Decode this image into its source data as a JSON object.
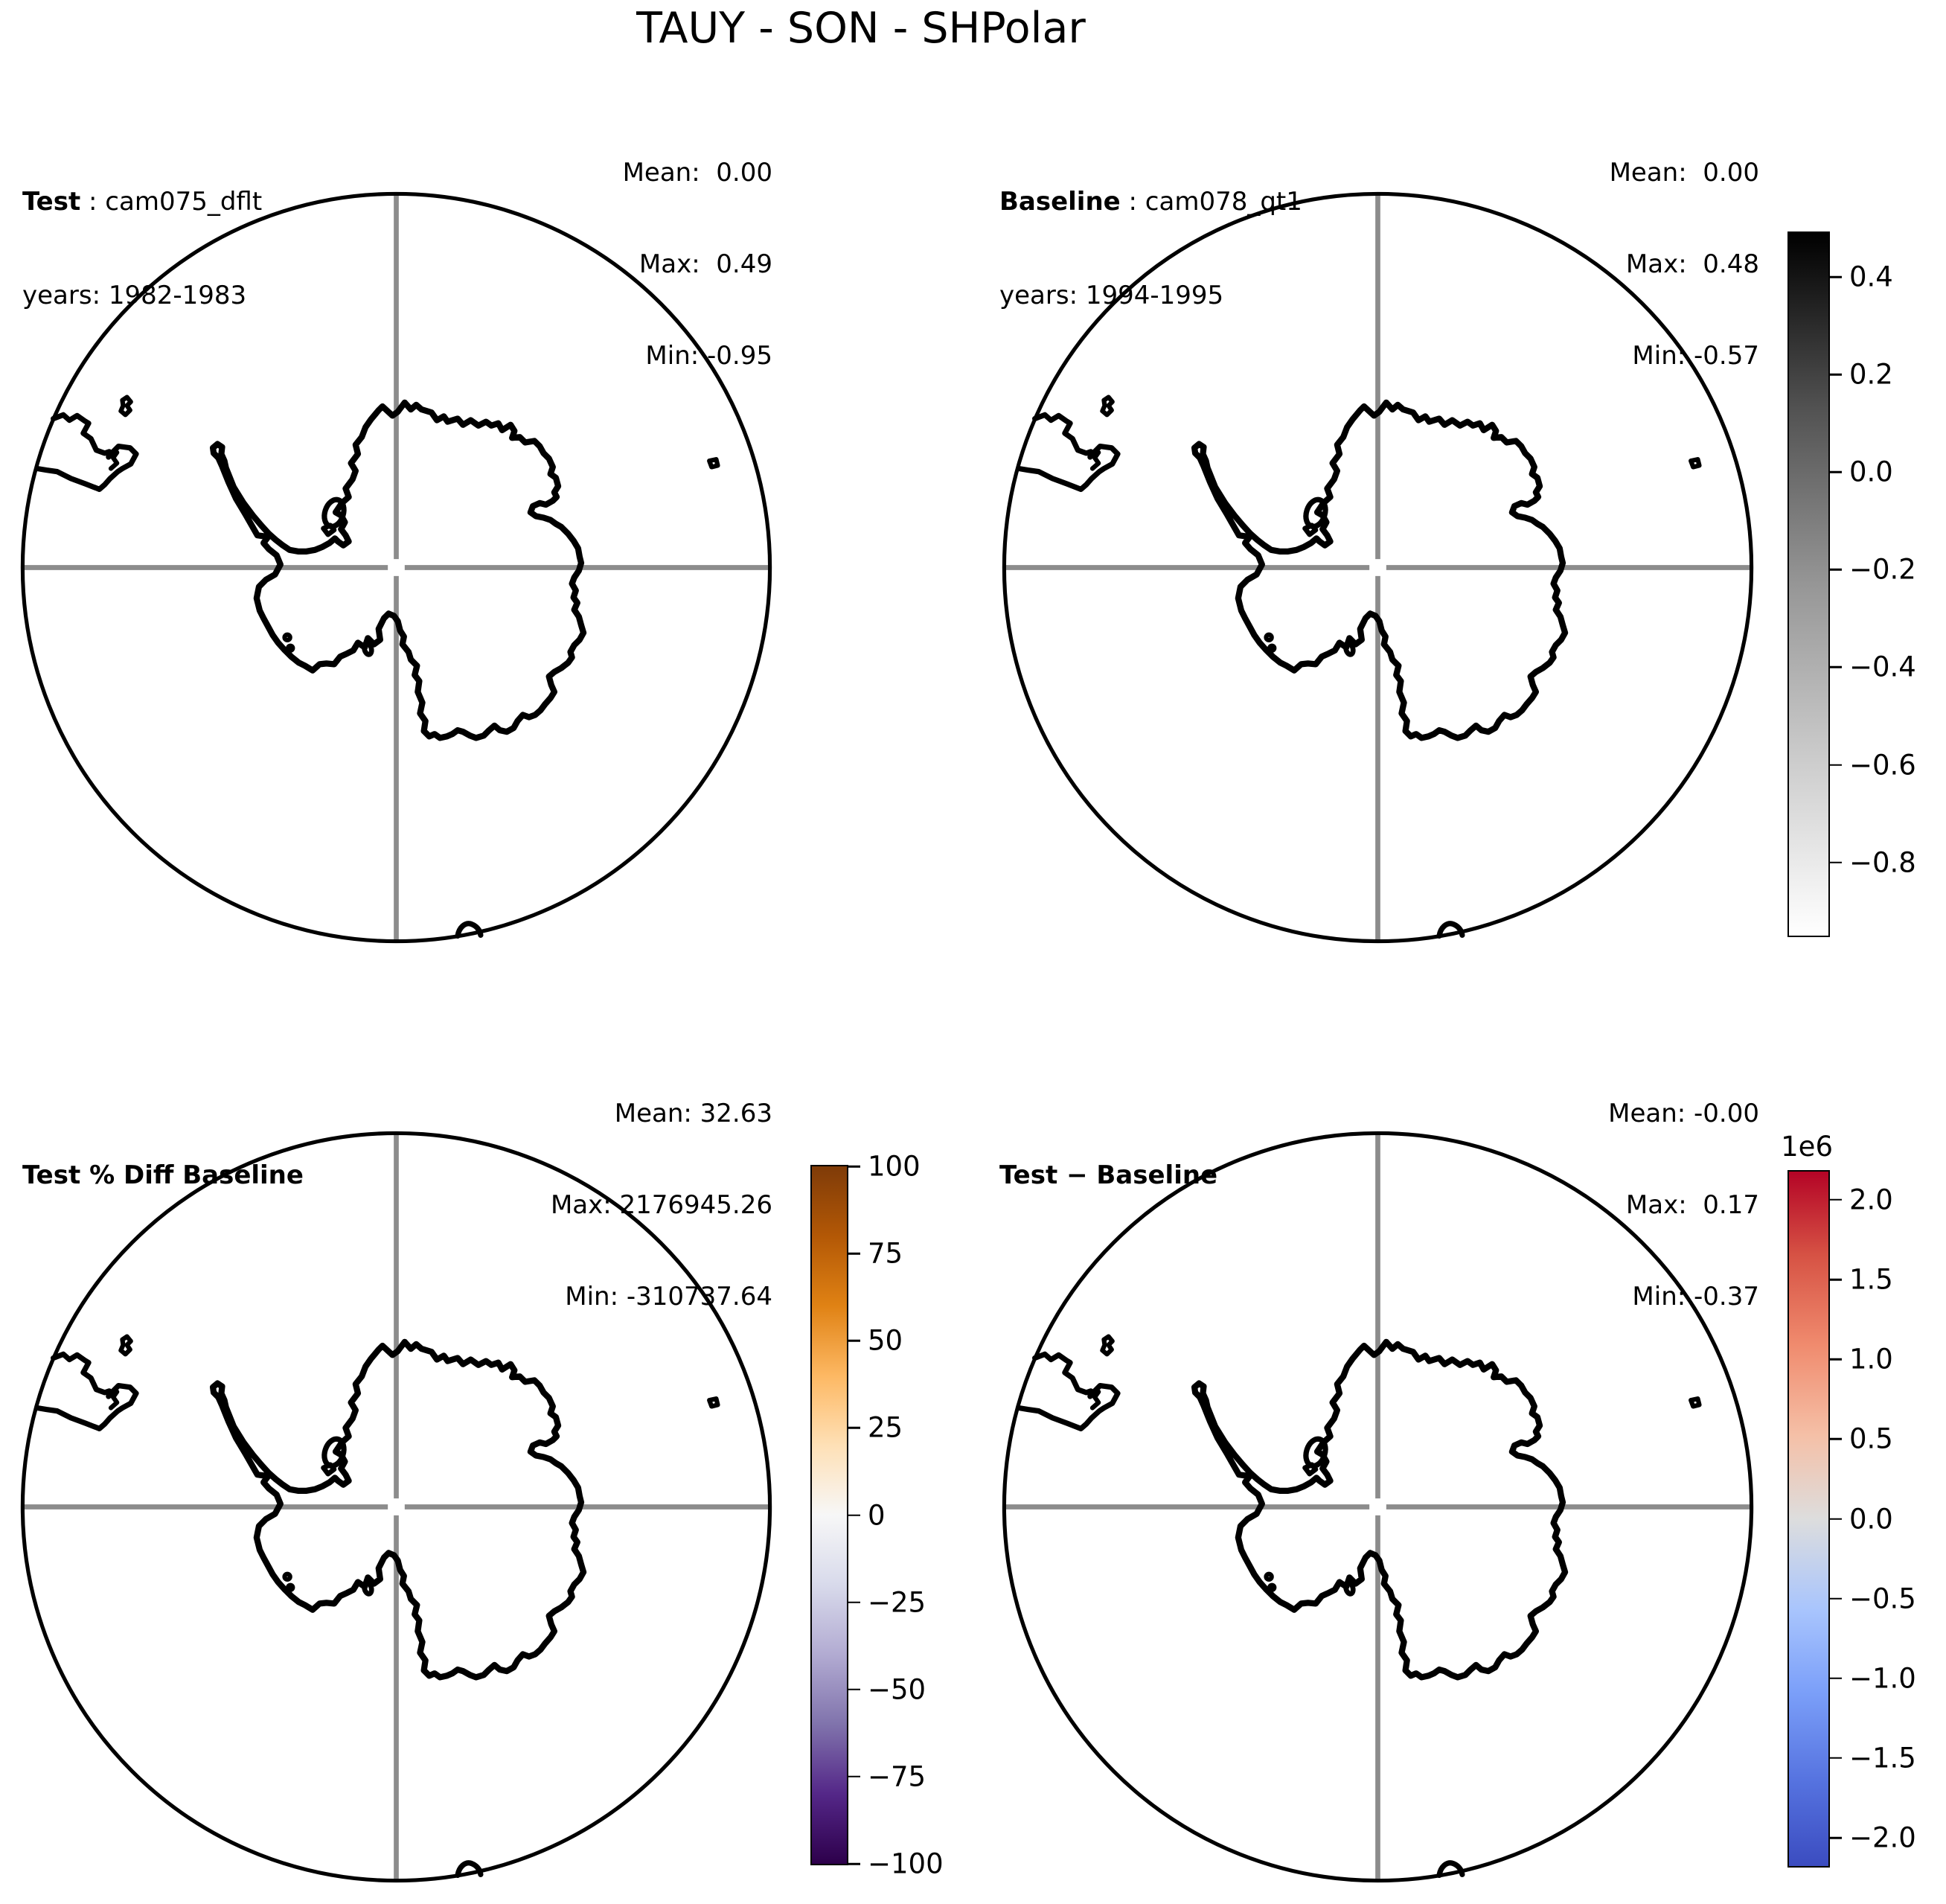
{
  "title": "TAUY - SON - SHPolar",
  "panels": [
    {
      "id": "test",
      "label_bold": "Test",
      "label_rest": " : cam075_dflt",
      "years": "years: 1982-1983",
      "stats": {
        "mean": "Mean:  0.00",
        "max": "Max:  0.49",
        "min": "Min: -0.95"
      }
    },
    {
      "id": "baseline",
      "label_bold": "Baseline",
      "label_rest": " : cam078_qt1",
      "years": "years: 1994-1995",
      "stats": {
        "mean": "Mean:  0.00",
        "max": "Max:  0.48",
        "min": "Min: -0.57"
      }
    },
    {
      "id": "pct_diff",
      "label_bold": "Test % Diff Baseline",
      "label_rest": "",
      "years": "",
      "stats": {
        "mean": "Mean: 32.63",
        "max": "Max: 2176945.26",
        "min": "Min: -310737.64"
      }
    },
    {
      "id": "diff",
      "label_bold": "Test − Baseline",
      "label_rest": "",
      "years": "",
      "stats": {
        "mean": "Mean: -0.00",
        "max": "Max:  0.17",
        "min": "Min: -0.37"
      }
    }
  ],
  "colorbars": [
    {
      "id": "grays",
      "name": "grayscale",
      "vmin": -0.95,
      "vmax": 0.49,
      "stops": [
        {
          "color": "#000000",
          "at": 0
        },
        {
          "color": "#525252",
          "at": 25
        },
        {
          "color": "#969696",
          "at": 50
        },
        {
          "color": "#cccccc",
          "at": 75
        },
        {
          "color": "#ffffff",
          "at": 100
        }
      ],
      "ticks": [
        {
          "value": 0.4,
          "label": "0.4"
        },
        {
          "value": 0.2,
          "label": "0.2"
        },
        {
          "value": 0.0,
          "label": "0.0"
        },
        {
          "value": -0.2,
          "label": "−0.2"
        },
        {
          "value": -0.4,
          "label": "−0.4"
        },
        {
          "value": -0.6,
          "label": "−0.6"
        },
        {
          "value": -0.8,
          "label": "−0.8"
        }
      ]
    },
    {
      "id": "puor",
      "name": "PuOr",
      "vmin": -100,
      "vmax": 100,
      "stops": [
        {
          "color": "#7f3b08",
          "at": 0
        },
        {
          "color": "#b35806",
          "at": 10
        },
        {
          "color": "#e08214",
          "at": 20
        },
        {
          "color": "#fdb863",
          "at": 30
        },
        {
          "color": "#fee0b6",
          "at": 40
        },
        {
          "color": "#f7f7f7",
          "at": 50
        },
        {
          "color": "#d8daeb",
          "at": 60
        },
        {
          "color": "#b2abd2",
          "at": 70
        },
        {
          "color": "#8073ac",
          "at": 80
        },
        {
          "color": "#542788",
          "at": 90
        },
        {
          "color": "#2d004b",
          "at": 100
        }
      ],
      "ticks": [
        {
          "value": 100,
          "label": "100"
        },
        {
          "value": 75,
          "label": "75"
        },
        {
          "value": 50,
          "label": "50"
        },
        {
          "value": 25,
          "label": "25"
        },
        {
          "value": 0,
          "label": "0"
        },
        {
          "value": -25,
          "label": "−25"
        },
        {
          "value": -50,
          "label": "−50"
        },
        {
          "value": -75,
          "label": "−75"
        },
        {
          "value": -100,
          "label": "−100"
        }
      ]
    },
    {
      "id": "coolwarm",
      "name": "coolwarm",
      "offset_label": "1e6",
      "vmin": -2.176945,
      "vmax": 2.176945,
      "stops": [
        {
          "color": "#b40426",
          "at": 0
        },
        {
          "color": "#d65244",
          "at": 12
        },
        {
          "color": "#f08b6e",
          "at": 25
        },
        {
          "color": "#f5c0a7",
          "at": 38
        },
        {
          "color": "#dddddd",
          "at": 50
        },
        {
          "color": "#a9c5fd",
          "at": 63
        },
        {
          "color": "#7b9ff9",
          "at": 75
        },
        {
          "color": "#5572df",
          "at": 88
        },
        {
          "color": "#3b4cc0",
          "at": 100
        }
      ],
      "ticks": [
        {
          "value": 2.0,
          "label": "2.0"
        },
        {
          "value": 1.5,
          "label": "1.5"
        },
        {
          "value": 1.0,
          "label": "1.0"
        },
        {
          "value": 0.5,
          "label": "0.5"
        },
        {
          "value": 0.0,
          "label": "0.0"
        },
        {
          "value": -0.5,
          "label": "−0.5"
        },
        {
          "value": -1.0,
          "label": "−1.0"
        },
        {
          "value": -1.5,
          "label": "−1.5"
        },
        {
          "value": -2.0,
          "label": "−2.0"
        }
      ]
    }
  ],
  "chart_data": {
    "type": "heatmap",
    "title": "TAUY - SON - SHPolar",
    "variable": "TAUY",
    "season": "SON",
    "region": "SHPolar",
    "projection": "south polar stereographic",
    "grid": "lat/lon crosshair through pole, circular boundary, Antarctica coastlines",
    "panels": [
      {
        "position": "top-left",
        "name": "Test",
        "case": "cam075_dflt",
        "years": "1982-1983",
        "mean": 0.0,
        "max": 0.49,
        "min": -0.95,
        "colormap": "grayscale",
        "colorbar_range": [
          -0.95,
          0.49
        ],
        "colorbar_ticks": [
          0.4,
          0.2,
          0.0,
          -0.2,
          -0.4,
          -0.6,
          -0.8
        ]
      },
      {
        "position": "top-right",
        "name": "Baseline",
        "case": "cam078_qt1",
        "years": "1994-1995",
        "mean": 0.0,
        "max": 0.48,
        "min": -0.57,
        "colormap": "grayscale",
        "colorbar_range": [
          -0.95,
          0.49
        ],
        "colorbar_ticks": [
          0.4,
          0.2,
          0.0,
          -0.2,
          -0.4,
          -0.6,
          -0.8
        ]
      },
      {
        "position": "bottom-left",
        "name": "Test % Diff Baseline",
        "mean": 32.63,
        "max": 2176945.26,
        "min": -310737.64,
        "colormap": "PuOr",
        "colorbar_range": [
          -100,
          100
        ],
        "colorbar_ticks": [
          100,
          75,
          50,
          25,
          0,
          -25,
          -50,
          -75,
          -100
        ]
      },
      {
        "position": "bottom-right",
        "name": "Test − Baseline",
        "mean": -0.0,
        "max": 0.17,
        "min": -0.37,
        "colormap": "coolwarm",
        "colorbar_scale": 1000000,
        "colorbar_range_1e6": [
          -2.176945,
          2.176945
        ],
        "colorbar_ticks_1e6": [
          2.0,
          1.5,
          1.0,
          0.5,
          0.0,
          -0.5,
          -1.0,
          -1.5,
          -2.0
        ]
      }
    ],
    "legend_position": "right of each row",
    "gridlines_color": "#8c8c8c"
  }
}
